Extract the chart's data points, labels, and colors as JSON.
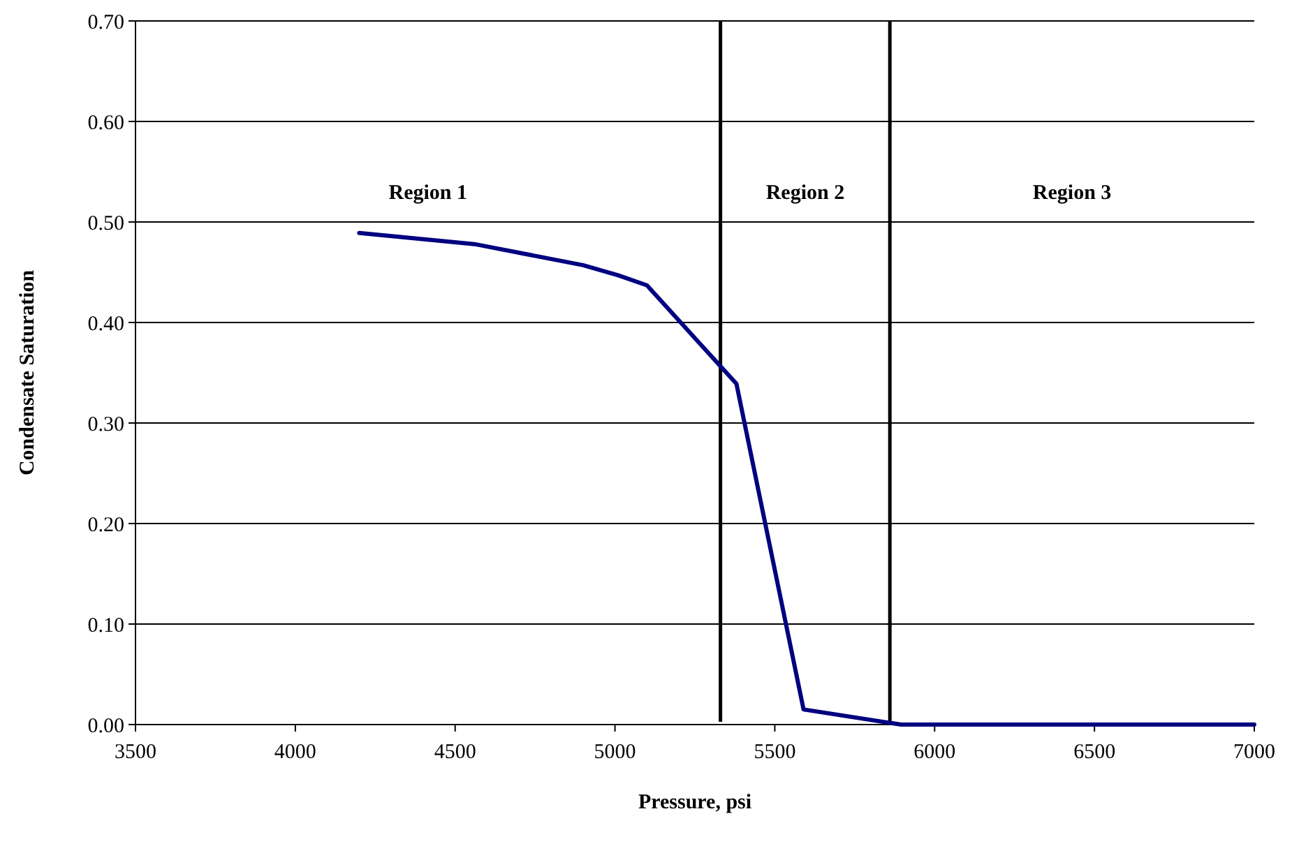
{
  "chart_data": {
    "type": "line",
    "xlabel": "Pressure, psi",
    "ylabel": "Condensate Saturation",
    "x": [
      4200,
      4560,
      4900,
      5010,
      5100,
      5380,
      5590,
      5895,
      7000
    ],
    "series": [
      {
        "color": "#000080",
        "values": [
          0.489,
          0.478,
          0.457,
          0.447,
          0.437,
          0.339,
          0.015,
          0,
          0
        ]
      }
    ],
    "xlim": [
      3500,
      7000
    ],
    "xticks": [
      3500,
      4000,
      4500,
      5000,
      5500,
      6000,
      6500,
      7000
    ],
    "ylim": [
      0,
      0.7
    ],
    "yticks": [
      {
        "value": 0,
        "label": "0.00"
      },
      {
        "value": 0.1,
        "label": "0.10"
      },
      {
        "value": 0.2,
        "label": "0.20"
      },
      {
        "value": 0.3,
        "label": "0.30"
      },
      {
        "value": 0.4,
        "label": "0.40"
      },
      {
        "value": 0.5,
        "label": "0.50"
      },
      {
        "value": 0.6,
        "label": "0.60"
      },
      {
        "value": 0.7,
        "label": "0.70"
      }
    ],
    "grid": "y",
    "marker": "none",
    "line_style": "solid",
    "ref_lines": [
      {
        "axis": "x",
        "value": 5330,
        "color": "#000000"
      },
      {
        "axis": "x",
        "value": 5860,
        "color": "#000000"
      }
    ],
    "annotations": [
      "Region 1",
      "Region 2",
      "Region 3"
    ]
  }
}
